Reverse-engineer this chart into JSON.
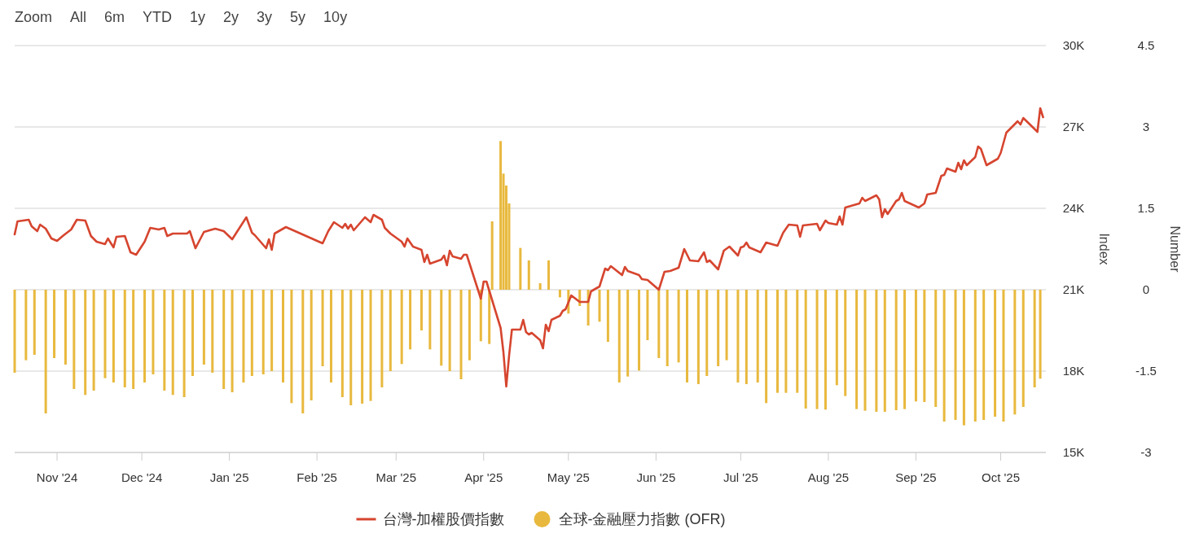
{
  "chart_data": {
    "type": "line",
    "ylabel": "Index",
    "y2label": "Number",
    "grid": "y",
    "legend": "bottom",
    "annotations": [
      "Zoom",
      "All",
      "6m",
      "YTD",
      "1y",
      "2y",
      "3y",
      "5y",
      "10y"
    ],
    "xlim": [
      "2024-10-17",
      "2025-10-17"
    ],
    "xticks": [
      {
        "value": "2024-11-01",
        "label": "Nov '24"
      },
      {
        "value": "2024-12-01",
        "label": "Dec '24"
      },
      {
        "value": "2025-01-01",
        "label": "Jan '25"
      },
      {
        "value": "2025-02-01",
        "label": "Feb '25"
      },
      {
        "value": "2025-03-01",
        "label": "Mar '25"
      },
      {
        "value": "2025-04-01",
        "label": "Apr '25"
      },
      {
        "value": "2025-05-01",
        "label": "May '25"
      },
      {
        "value": "2025-06-01",
        "label": "Jun '25"
      },
      {
        "value": "2025-07-01",
        "label": "Jul '25"
      },
      {
        "value": "2025-08-01",
        "label": "Aug '25"
      },
      {
        "value": "2025-09-01",
        "label": "Sep '25"
      },
      {
        "value": "2025-10-01",
        "label": "Oct '25"
      }
    ],
    "ylim": [
      15000,
      30000
    ],
    "yticks": [
      {
        "value": 15000,
        "label": "15K"
      },
      {
        "value": 18000,
        "label": "18K"
      },
      {
        "value": 21000,
        "label": "21K"
      },
      {
        "value": 24000,
        "label": "24K"
      },
      {
        "value": 27000,
        "label": "27K"
      },
      {
        "value": 30000,
        "label": "30K"
      }
    ],
    "y2lim": [
      -3,
      4.5
    ],
    "y2ticks": [
      -3,
      -1.5,
      0,
      1.5,
      3,
      4.5
    ],
    "series": [
      {
        "name": "全球-金融壓力指數 (OFR)",
        "type": "bar",
        "axis": "y2",
        "color": "#e8b93e",
        "x": [
          "2024-10-17",
          "2024-10-21",
          "2024-10-24",
          "2024-10-28",
          "2024-10-31",
          "2024-11-04",
          "2024-11-07",
          "2024-11-11",
          "2024-11-14",
          "2024-11-18",
          "2024-11-21",
          "2024-11-25",
          "2024-11-28",
          "2024-12-02",
          "2024-12-05",
          "2024-12-09",
          "2024-12-12",
          "2024-12-16",
          "2024-12-19",
          "2024-12-23",
          "2024-12-26",
          "2024-12-30",
          "2025-01-02",
          "2025-01-06",
          "2025-01-09",
          "2025-01-13",
          "2025-01-16",
          "2025-01-20",
          "2025-01-23",
          "2025-01-27",
          "2025-01-30",
          "2025-02-03",
          "2025-02-06",
          "2025-02-10",
          "2025-02-13",
          "2025-02-17",
          "2025-02-20",
          "2025-02-24",
          "2025-02-27",
          "2025-03-03",
          "2025-03-06",
          "2025-03-10",
          "2025-03-13",
          "2025-03-17",
          "2025-03-20",
          "2025-03-24",
          "2025-03-27",
          "2025-03-31",
          "2025-04-03",
          "2025-04-04",
          "2025-04-07",
          "2025-04-08",
          "2025-04-09",
          "2025-04-10",
          "2025-04-14",
          "2025-04-17",
          "2025-04-21",
          "2025-04-24",
          "2025-04-28",
          "2025-05-01",
          "2025-05-05",
          "2025-05-08",
          "2025-05-12",
          "2025-05-15",
          "2025-05-19",
          "2025-05-22",
          "2025-05-26",
          "2025-05-29",
          "2025-06-02",
          "2025-06-05",
          "2025-06-09",
          "2025-06-12",
          "2025-06-16",
          "2025-06-19",
          "2025-06-23",
          "2025-06-26",
          "2025-06-30",
          "2025-07-03",
          "2025-07-07",
          "2025-07-10",
          "2025-07-14",
          "2025-07-17",
          "2025-07-21",
          "2025-07-24",
          "2025-07-28",
          "2025-07-31",
          "2025-08-04",
          "2025-08-07",
          "2025-08-11",
          "2025-08-14",
          "2025-08-18",
          "2025-08-21",
          "2025-08-25",
          "2025-08-28",
          "2025-09-01",
          "2025-09-04",
          "2025-09-08",
          "2025-09-11",
          "2025-09-15",
          "2025-09-18",
          "2025-09-22",
          "2025-09-25",
          "2025-09-29",
          "2025-10-02",
          "2025-10-06",
          "2025-10-09",
          "2025-10-13",
          "2025-10-15"
        ],
        "values": [
          -1.53,
          -1.3,
          -1.2,
          -2.28,
          -1.26,
          -1.38,
          -1.83,
          -1.94,
          -1.86,
          -1.63,
          -1.71,
          -1.8,
          -1.83,
          -1.71,
          -1.56,
          -1.86,
          -1.94,
          -1.98,
          -1.59,
          -1.38,
          -1.53,
          -1.83,
          -1.89,
          -1.71,
          -1.59,
          -1.56,
          -1.5,
          -1.71,
          -2.09,
          -2.28,
          -2.04,
          -1.41,
          -1.71,
          -1.98,
          -2.13,
          -2.1,
          -2.05,
          -1.8,
          -1.5,
          -1.37,
          -1.1,
          -0.75,
          -1.1,
          -1.4,
          -1.5,
          -1.65,
          -1.3,
          -0.95,
          -1.0,
          1.26,
          2.74,
          2.14,
          1.92,
          1.59,
          0.77,
          0.54,
          0.12,
          0.54,
          -0.14,
          -0.44,
          -0.3,
          -0.66,
          -0.59,
          -0.96,
          -1.71,
          -1.6,
          -1.49,
          -0.93,
          -1.26,
          -1.41,
          -1.34,
          -1.71,
          -1.74,
          -1.59,
          -1.41,
          -1.3,
          -1.71,
          -1.74,
          -1.71,
          -2.09,
          -1.9,
          -1.9,
          -1.9,
          -2.19,
          -2.2,
          -2.21,
          -1.76,
          -1.96,
          -2.2,
          -2.23,
          -2.25,
          -2.25,
          -2.22,
          -2.2,
          -2.06,
          -2.07,
          -2.16,
          -2.43,
          -2.4,
          -2.5,
          -2.43,
          -2.4,
          -2.34,
          -2.43,
          -2.3,
          -2.16,
          -1.8,
          -1.64
        ]
      },
      {
        "name": "台灣-加權股價指數",
        "axis": "y",
        "color": "#d6452f",
        "x": [
          "2024-10-17",
          "2024-10-18",
          "2024-10-22",
          "2024-10-23",
          "2024-10-25",
          "2024-10-26",
          "2024-10-28",
          "2024-10-30",
          "2024-11-01",
          "2024-11-03",
          "2024-11-06",
          "2024-11-08",
          "2024-11-11",
          "2024-11-13",
          "2024-11-15",
          "2024-11-18",
          "2024-11-19",
          "2024-11-21",
          "2024-11-22",
          "2024-11-25",
          "2024-11-27",
          "2024-11-29",
          "2024-12-02",
          "2024-12-04",
          "2024-12-07",
          "2024-12-09",
          "2024-12-10",
          "2024-12-12",
          "2024-12-17",
          "2024-12-18",
          "2024-12-20",
          "2024-12-23",
          "2024-12-24",
          "2024-12-27",
          "2024-12-30",
          "2025-01-02",
          "2025-01-07",
          "2025-01-09",
          "2025-01-10",
          "2025-01-14",
          "2025-01-15",
          "2025-01-16",
          "2025-01-17",
          "2025-01-21",
          "2025-02-03",
          "2025-02-05",
          "2025-02-07",
          "2025-02-10",
          "2025-02-11",
          "2025-02-12",
          "2025-02-13",
          "2025-02-14",
          "2025-02-18",
          "2025-02-20",
          "2025-02-21",
          "2025-02-24",
          "2025-02-25",
          "2025-02-27",
          "2025-03-03",
          "2025-03-04",
          "2025-03-05",
          "2025-03-07",
          "2025-03-10",
          "2025-03-11",
          "2025-03-12",
          "2025-03-13",
          "2025-03-17",
          "2025-03-18",
          "2025-03-19",
          "2025-03-20",
          "2025-03-21",
          "2025-03-24",
          "2025-03-25",
          "2025-03-26",
          "2025-03-31",
          "2025-04-01",
          "2025-04-02",
          "2025-04-07",
          "2025-04-08",
          "2025-04-09",
          "2025-04-10",
          "2025-04-11",
          "2025-04-14",
          "2025-04-15",
          "2025-04-16",
          "2025-04-17",
          "2025-04-18",
          "2025-04-21",
          "2025-04-22",
          "2025-04-23",
          "2025-04-24",
          "2025-04-25",
          "2025-04-28",
          "2025-04-29",
          "2025-04-30",
          "2025-05-02",
          "2025-05-05",
          "2025-05-08",
          "2025-05-09",
          "2025-05-12",
          "2025-05-14",
          "2025-05-15",
          "2025-05-16",
          "2025-05-20",
          "2025-05-21",
          "2025-05-22",
          "2025-05-26",
          "2025-05-27",
          "2025-05-29",
          "2025-06-02",
          "2025-06-04",
          "2025-06-06",
          "2025-06-09",
          "2025-06-11",
          "2025-06-13",
          "2025-06-16",
          "2025-06-18",
          "2025-06-19",
          "2025-06-20",
          "2025-06-23",
          "2025-06-25",
          "2025-06-27",
          "2025-06-30",
          "2025-07-01",
          "2025-07-02",
          "2025-07-03",
          "2025-07-04",
          "2025-07-08",
          "2025-07-10",
          "2025-07-14",
          "2025-07-16",
          "2025-07-18",
          "2025-07-21",
          "2025-07-22",
          "2025-07-23",
          "2025-07-28",
          "2025-07-29",
          "2025-07-31",
          "2025-08-01",
          "2025-08-04",
          "2025-08-05",
          "2025-08-06",
          "2025-08-07",
          "2025-08-12",
          "2025-08-13",
          "2025-08-14",
          "2025-08-18",
          "2025-08-19",
          "2025-08-20",
          "2025-08-21",
          "2025-08-22",
          "2025-08-25",
          "2025-08-26",
          "2025-08-27",
          "2025-08-28",
          "2025-09-02",
          "2025-09-04",
          "2025-09-05",
          "2025-09-08",
          "2025-09-10",
          "2025-09-11",
          "2025-09-12",
          "2025-09-15",
          "2025-09-16",
          "2025-09-17",
          "2025-09-18",
          "2025-09-19",
          "2025-09-22",
          "2025-09-23",
          "2025-09-24",
          "2025-09-26",
          "2025-09-30",
          "2025-10-01",
          "2025-10-03",
          "2025-10-07",
          "2025-10-08",
          "2025-10-09",
          "2025-10-14",
          "2025-10-15",
          "2025-10-16"
        ],
        "values": [
          23040,
          23520,
          23580,
          23340,
          23160,
          23400,
          23250,
          22890,
          22800,
          22980,
          23220,
          23580,
          23550,
          22980,
          22770,
          22680,
          22890,
          22560,
          22950,
          22980,
          22380,
          22290,
          22770,
          23280,
          23220,
          23280,
          22980,
          23070,
          23070,
          23160,
          22530,
          23130,
          23160,
          23250,
          23160,
          22860,
          23670,
          23100,
          23010,
          22530,
          22860,
          22470,
          23070,
          23310,
          22710,
          23160,
          23490,
          23280,
          23430,
          23250,
          23400,
          23190,
          23670,
          23490,
          23760,
          23580,
          23280,
          23070,
          22770,
          22590,
          22890,
          22590,
          22470,
          22020,
          22290,
          21960,
          22110,
          22260,
          21900,
          22440,
          22230,
          22140,
          22290,
          22290,
          20670,
          21300,
          21300,
          19590,
          18690,
          17430,
          18570,
          19530,
          19530,
          19890,
          19440,
          19350,
          19410,
          19140,
          18840,
          19710,
          19470,
          19890,
          20040,
          20220,
          20280,
          20790,
          20550,
          20550,
          20940,
          21120,
          21780,
          21720,
          21870,
          21540,
          21840,
          21690,
          21540,
          21390,
          21360,
          21000,
          21660,
          21690,
          21810,
          22500,
          22080,
          22050,
          22380,
          22020,
          22080,
          21750,
          22440,
          22590,
          22260,
          22560,
          22590,
          22740,
          22560,
          22380,
          22740,
          22620,
          23100,
          23400,
          23370,
          22950,
          23370,
          23430,
          23190,
          23550,
          23460,
          23400,
          23700,
          23400,
          24030,
          24180,
          24390,
          24270,
          24480,
          24330,
          23670,
          23970,
          23790,
          24270,
          24330,
          24570,
          24270,
          24030,
          24180,
          24510,
          24570,
          25200,
          25230,
          25470,
          25350,
          25680,
          25440,
          25770,
          25590,
          25890,
          26280,
          26190,
          25590,
          25830,
          26040,
          26790,
          27210,
          27090,
          27330,
          26820,
          27690,
          27360
        ]
      }
    ]
  }
}
